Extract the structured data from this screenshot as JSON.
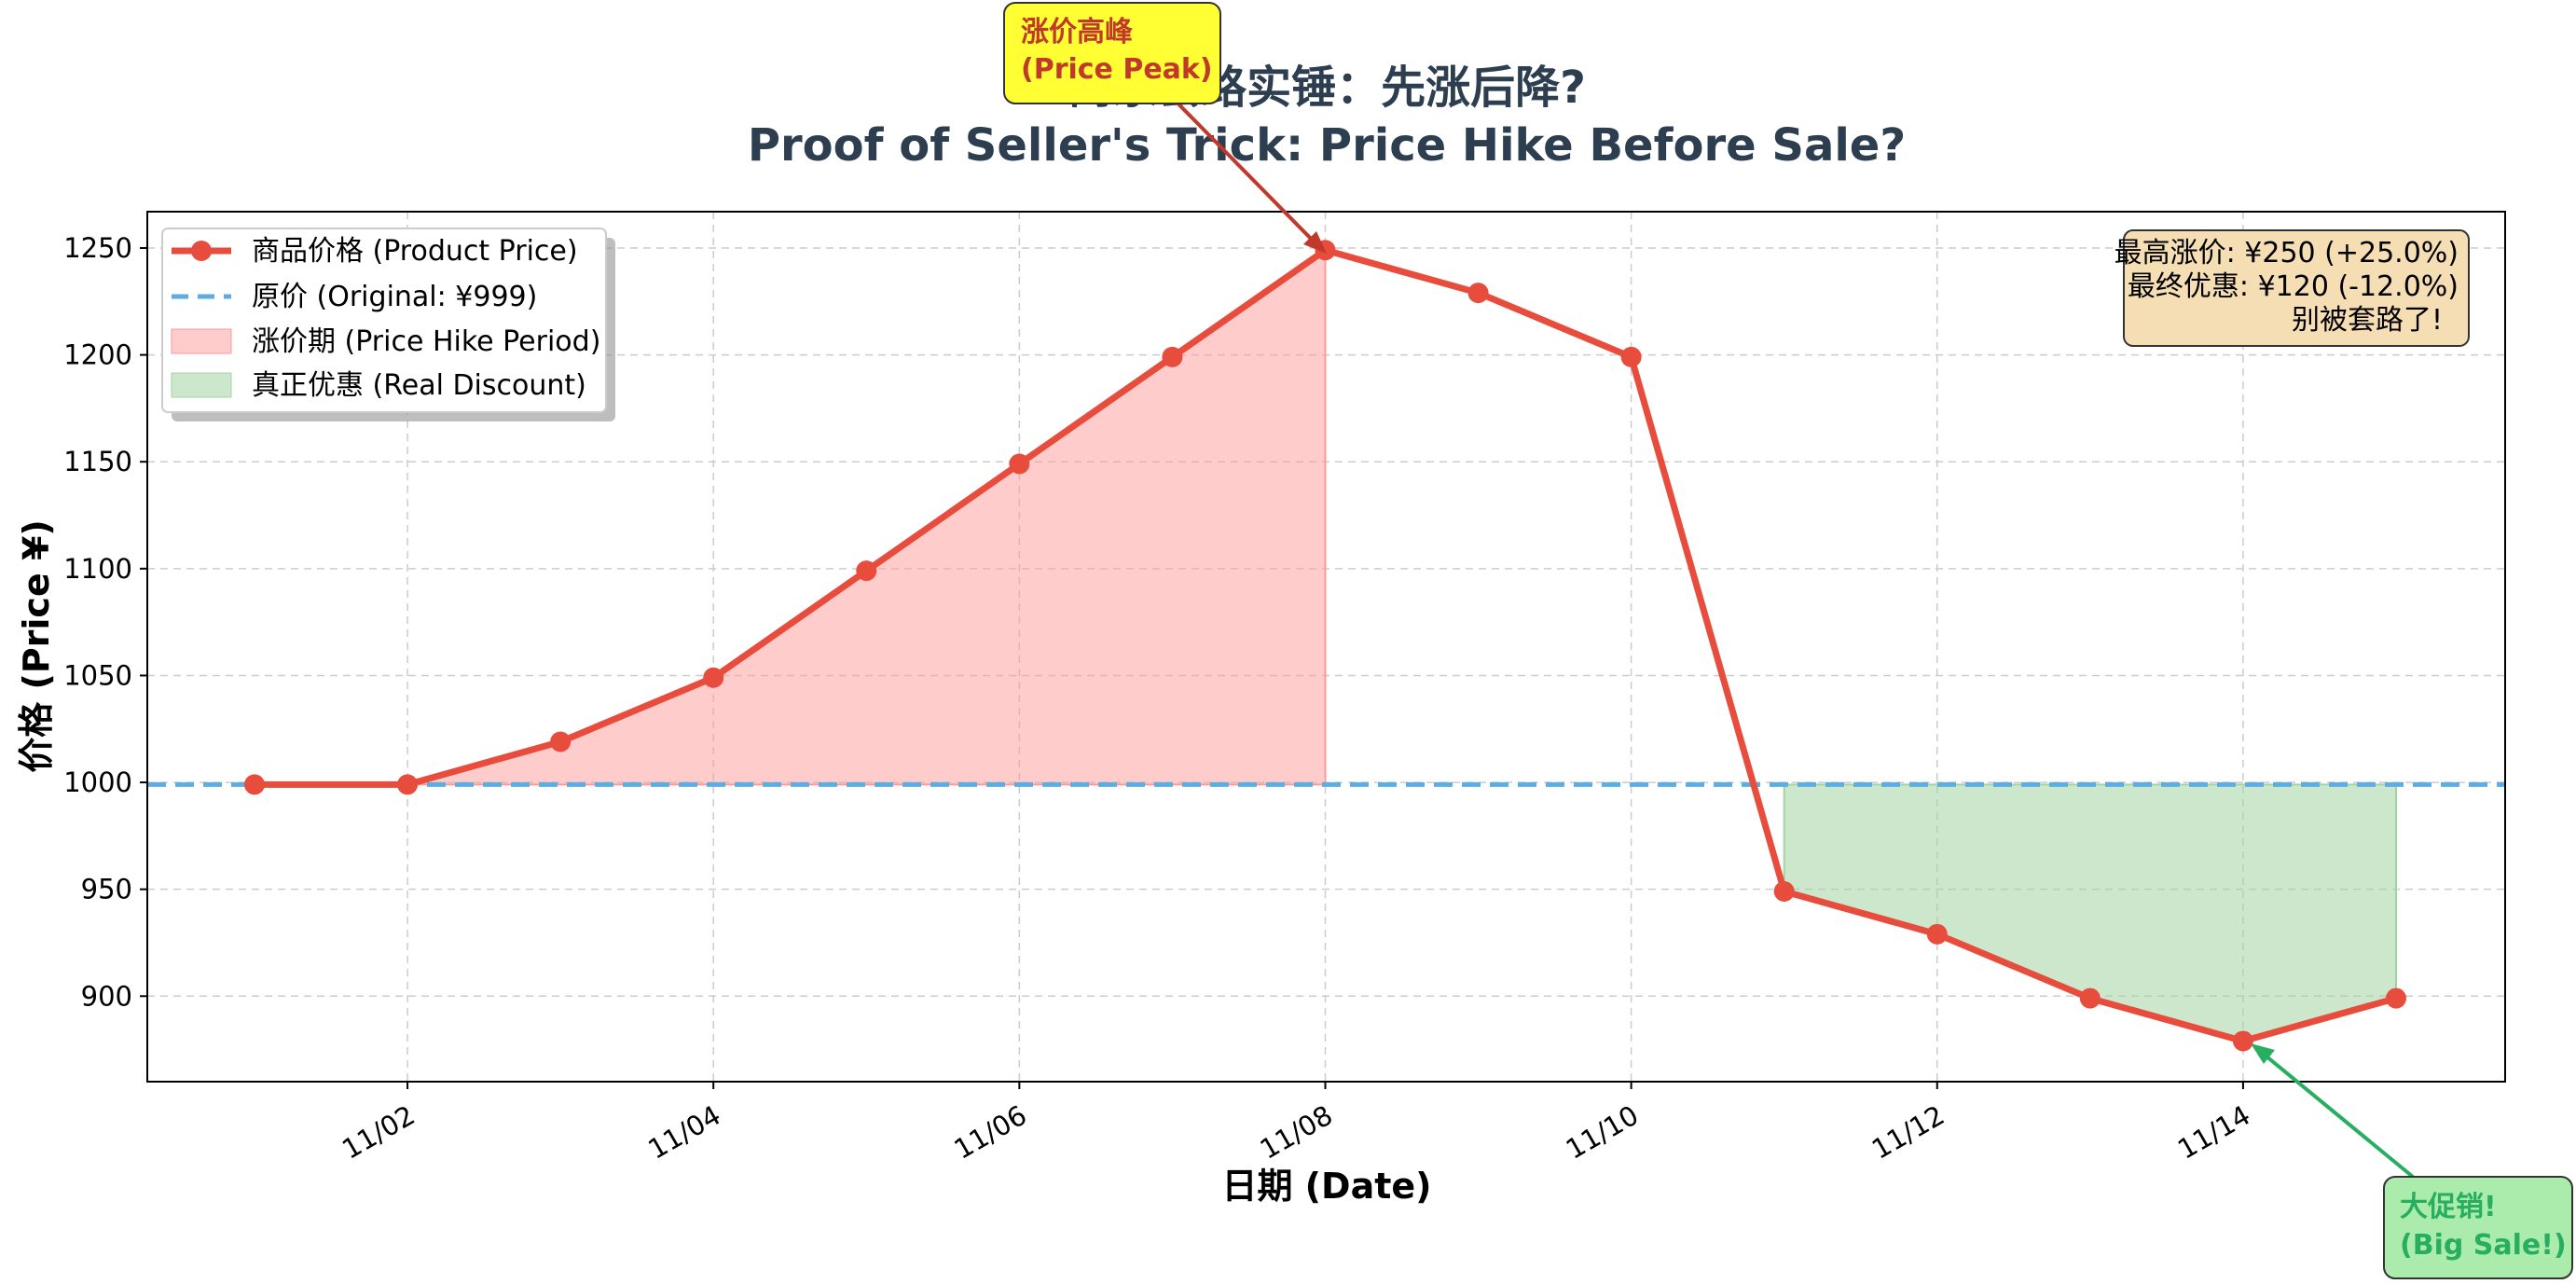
{
  "chart_data": {
    "type": "line",
    "title_line1": "商家套路实锤：先涨后降?",
    "title_line2": "Proof of Seller's Trick: Price Hike Before Sale?",
    "xlabel": "日期 (Date)",
    "ylabel": "价格 (Price ¥)",
    "x": [
      "11/01",
      "11/02",
      "11/03",
      "11/04",
      "11/05",
      "11/06",
      "11/07",
      "11/08",
      "11/09",
      "11/10",
      "11/11",
      "11/12",
      "11/13",
      "11/14",
      "11/15"
    ],
    "x_tick_labels": [
      "11/02",
      "11/04",
      "11/06",
      "11/08",
      "11/10",
      "11/12",
      "11/14"
    ],
    "series": [
      {
        "name": "商品价格 (Product Price)",
        "color": "#e74c3c",
        "values": [
          999,
          999,
          1019,
          1049,
          1099,
          1149,
          1199,
          1249,
          1229,
          1199,
          949,
          929,
          899,
          879,
          899
        ]
      }
    ],
    "baseline": {
      "name": "原价 (Original: ¥999)",
      "value": 999,
      "color": "#5dade2",
      "style": "dashed"
    },
    "fills": [
      {
        "name": "涨价期 (Price Hike Period)",
        "from_index": 0,
        "to_index": 7,
        "color": "#ff9999"
      },
      {
        "name": "真正优惠 (Real Discount)",
        "from_index": 10,
        "to_index": 14,
        "color": "#a3d3a3"
      }
    ],
    "ylim": [
      860,
      1267
    ],
    "y_ticks": [
      900,
      950,
      1000,
      1050,
      1100,
      1150,
      1200,
      1250
    ],
    "grid": true,
    "legend_position": "top-left",
    "stats_box": {
      "line1": "最高涨价: ¥250 (+25.0%)",
      "line2": "最终优惠: ¥120 (-12.0%)",
      "line3": "别被套路了!",
      "color": "#f5deb3"
    },
    "annotations": [
      {
        "text_line1": "涨价高峰",
        "text_line2": "(Price Peak)",
        "target_index": 7,
        "color": "#c0392b",
        "box_color": "#ffff33"
      },
      {
        "text_line1": "大促销!",
        "text_line2": "(Big Sale!)",
        "target_index": 13,
        "color": "#27ae60",
        "box_color": "#abebab"
      }
    ]
  }
}
